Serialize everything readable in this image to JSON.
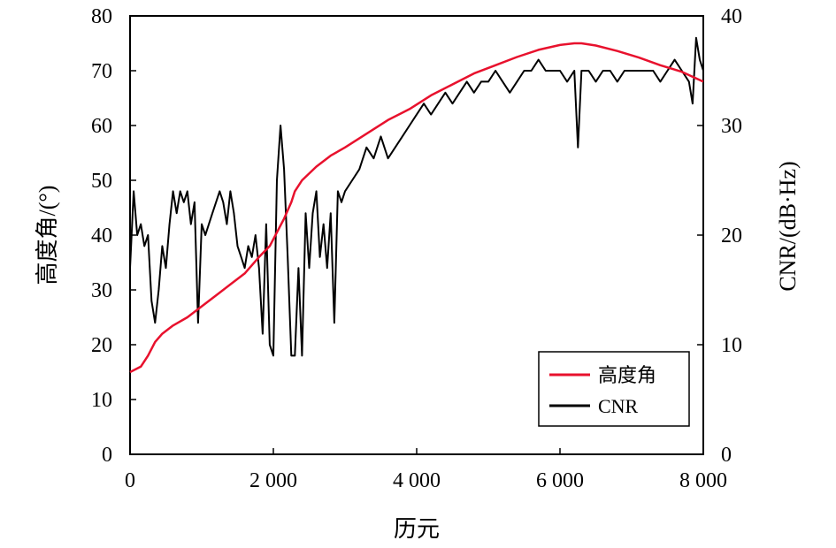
{
  "chart_data": {
    "type": "line",
    "title": "",
    "xlabel": "历元",
    "ylabel_left": "高度角/(°)",
    "ylabel_right": "CNR/(dB·Hz)",
    "xlim": [
      0,
      8000
    ],
    "ylim_left": [
      0,
      80
    ],
    "ylim_right": [
      0,
      40
    ],
    "x_ticks": [
      0,
      2000,
      4000,
      6000,
      8000
    ],
    "x_tick_labels": [
      "0",
      "2 000",
      "4 000",
      "6 000",
      "8 000"
    ],
    "y_left_ticks": [
      0,
      10,
      20,
      30,
      40,
      50,
      60,
      70,
      80
    ],
    "y_left_tick_labels": [
      "0",
      "10",
      "20",
      "30",
      "40",
      "50",
      "60",
      "70",
      "80"
    ],
    "y_right_ticks": [
      0,
      10,
      20,
      30,
      40
    ],
    "y_right_tick_labels": [
      "0",
      "10",
      "20",
      "30",
      "40"
    ],
    "grid": false,
    "legend_position": "bottom-right",
    "series": [
      {
        "name": "高度角",
        "color": "#e8112d",
        "axis": "left",
        "x": [
          0,
          150,
          250,
          350,
          450,
          600,
          800,
          1000,
          1200,
          1400,
          1600,
          1800,
          1950,
          2050,
          2150,
          2250,
          2300,
          2400,
          2600,
          2800,
          3000,
          3300,
          3600,
          3900,
          4200,
          4500,
          4800,
          5100,
          5400,
          5700,
          6000,
          6200,
          6300,
          6500,
          6800,
          7100,
          7400,
          7700,
          8000
        ],
        "y": [
          15,
          16,
          18,
          20.5,
          22,
          23.5,
          25,
          27,
          29,
          31,
          33,
          36,
          38,
          40.5,
          43,
          46,
          48,
          50,
          52.5,
          54.5,
          56,
          58.5,
          61,
          63,
          65.5,
          67.5,
          69.5,
          71,
          72.5,
          73.8,
          74.7,
          75,
          75,
          74.6,
          73.6,
          72.4,
          71,
          69.8,
          68
        ]
      },
      {
        "name": "CNR",
        "color": "#000000",
        "axis": "right",
        "x": [
          0,
          50,
          100,
          150,
          200,
          250,
          300,
          350,
          400,
          450,
          500,
          550,
          600,
          650,
          700,
          750,
          800,
          850,
          900,
          950,
          1000,
          1050,
          1100,
          1150,
          1200,
          1250,
          1300,
          1350,
          1400,
          1450,
          1500,
          1550,
          1600,
          1650,
          1700,
          1750,
          1800,
          1850,
          1900,
          1950,
          2000,
          2050,
          2100,
          2150,
          2200,
          2250,
          2300,
          2350,
          2400,
          2450,
          2500,
          2550,
          2600,
          2650,
          2700,
          2750,
          2800,
          2850,
          2900,
          2950,
          3000,
          3100,
          3200,
          3300,
          3400,
          3500,
          3600,
          3700,
          3800,
          3900,
          4000,
          4100,
          4200,
          4300,
          4400,
          4500,
          4600,
          4700,
          4800,
          4900,
          5000,
          5100,
          5200,
          5300,
          5400,
          5500,
          5600,
          5700,
          5800,
          5900,
          6000,
          6100,
          6200,
          6250,
          6300,
          6400,
          6500,
          6600,
          6700,
          6800,
          6900,
          7000,
          7100,
          7200,
          7300,
          7400,
          7500,
          7600,
          7700,
          7800,
          7850,
          7900,
          7950,
          8000
        ],
        "y": [
          17,
          24,
          20,
          21,
          19,
          20,
          14,
          12,
          15,
          19,
          17,
          21,
          24,
          22,
          24,
          23,
          24,
          21,
          23,
          12,
          21,
          20,
          21,
          22,
          23,
          24,
          23,
          21,
          24,
          22,
          19,
          18,
          17,
          19,
          18,
          20,
          17,
          11,
          21,
          10,
          9,
          25,
          30,
          26,
          18,
          9,
          9,
          17,
          9,
          22,
          17,
          22,
          24,
          18,
          21,
          17,
          22,
          12,
          24,
          23,
          24,
          25,
          26,
          28,
          27,
          29,
          27,
          28,
          29,
          30,
          31,
          32,
          31,
          32,
          33,
          32,
          33,
          34,
          33,
          34,
          34,
          35,
          34,
          33,
          34,
          35,
          35,
          36,
          35,
          35,
          35,
          34,
          35,
          28,
          35,
          35,
          34,
          35,
          35,
          34,
          35,
          35,
          35,
          35,
          35,
          34,
          35,
          36,
          35,
          34,
          32,
          38,
          36,
          35
        ]
      }
    ]
  }
}
